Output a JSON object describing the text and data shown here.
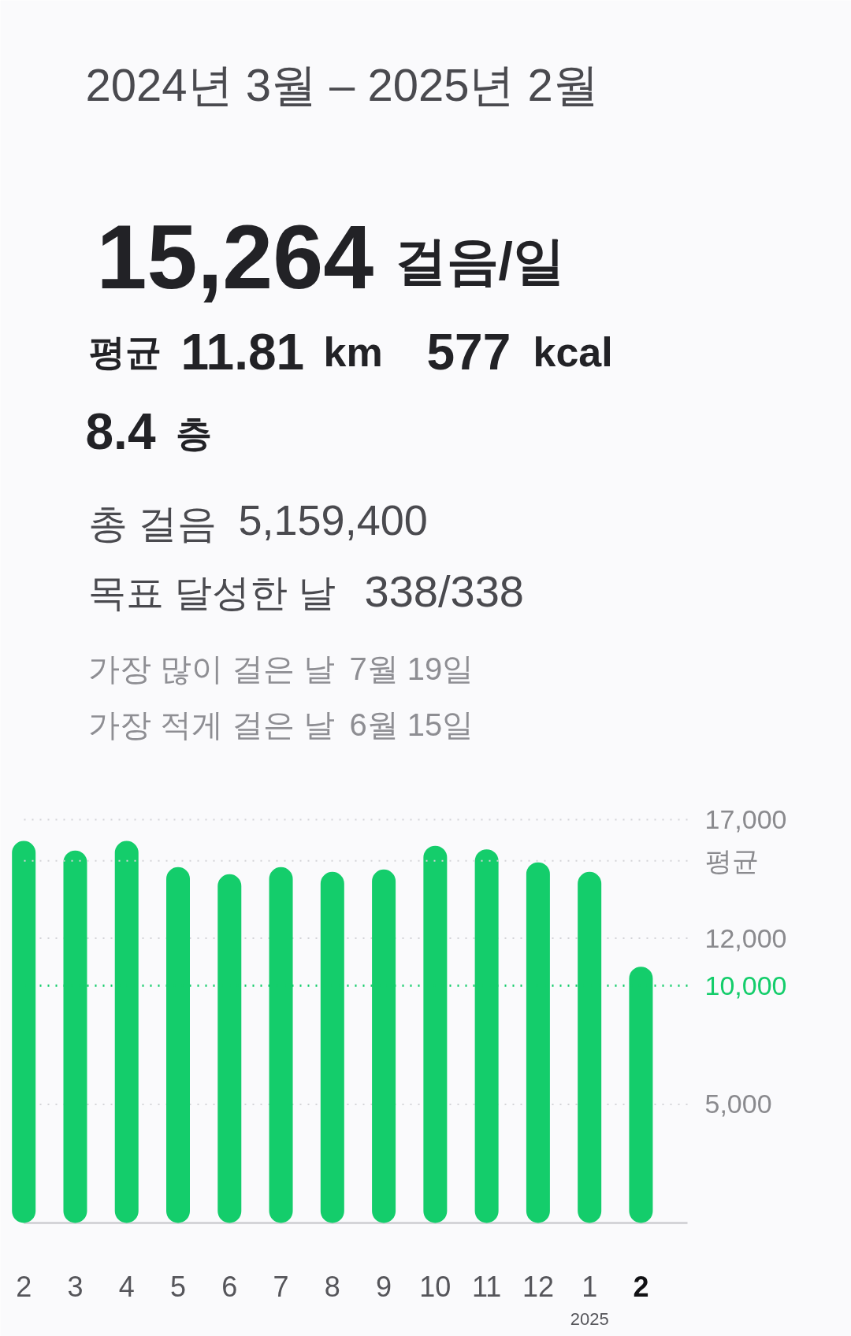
{
  "chart_data": {
    "type": "bar",
    "title": "2024년 3월 – 2025년 2월",
    "annotations": [
      "15,264",
      "걸음/일",
      "평균",
      "11.81",
      "km",
      "577",
      "kcal",
      "8.4",
      "층",
      "총 걸음",
      "5,159,400",
      "목표 달성한 날",
      "338/338",
      "가장 많이 걸은 날",
      "7월 19일",
      "가장 적게 걸은 날",
      "6월 15일",
      "2025"
    ],
    "categories": [
      "2",
      "3",
      "4",
      "5",
      "6",
      "7",
      "8",
      "9",
      "10",
      "11",
      "12",
      "1",
      "2"
    ],
    "values": [
      16100,
      15700,
      16100,
      15000,
      14700,
      15000,
      14800,
      14900,
      15900,
      15750,
      15200,
      14800,
      10800
    ],
    "color": "#14cd6b",
    "ylim": [
      0,
      17000
    ],
    "yticks": [
      {
        "value": 5000,
        "label": "5,000"
      },
      {
        "value": 12000,
        "label": "12,000"
      },
      {
        "value": 17000,
        "label": "17,000"
      }
    ],
    "grid": "y",
    "ref_lines": [
      {
        "axis": "y",
        "value": 10000,
        "label": "10,000",
        "color": "#14cd6b",
        "line_style": "dotted"
      },
      {
        "axis": "y",
        "value": 15264,
        "label": "평균",
        "line_style": "dotted"
      }
    ]
  }
}
